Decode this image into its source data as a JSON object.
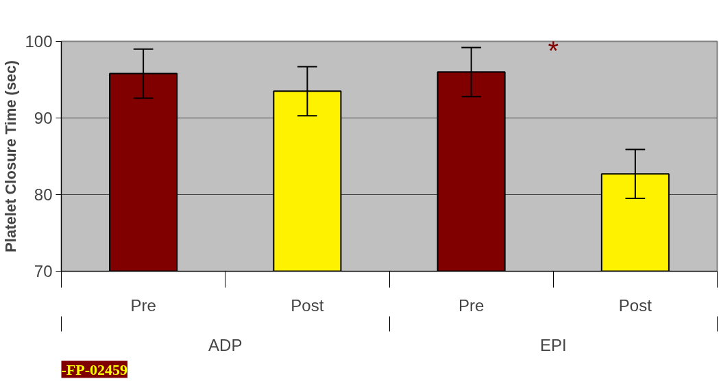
{
  "chart_data": {
    "type": "bar",
    "ylabel": "Platelet Closure Time (sec)",
    "categories": [
      "Pre",
      "Post",
      "Pre",
      "Post"
    ],
    "values": [
      95.8,
      93.5,
      96.0,
      82.7
    ],
    "errors": [
      3.2,
      3.2,
      3.2,
      3.2
    ],
    "colors": [
      "#800000",
      "#fff200",
      "#800000",
      "#fff200"
    ],
    "ylim": [
      70,
      100
    ],
    "yticks": [
      70,
      80,
      90,
      100
    ],
    "grid": "y",
    "annotations": [
      "ADP",
      "EPI",
      "*",
      "-FP-02459"
    ]
  }
}
